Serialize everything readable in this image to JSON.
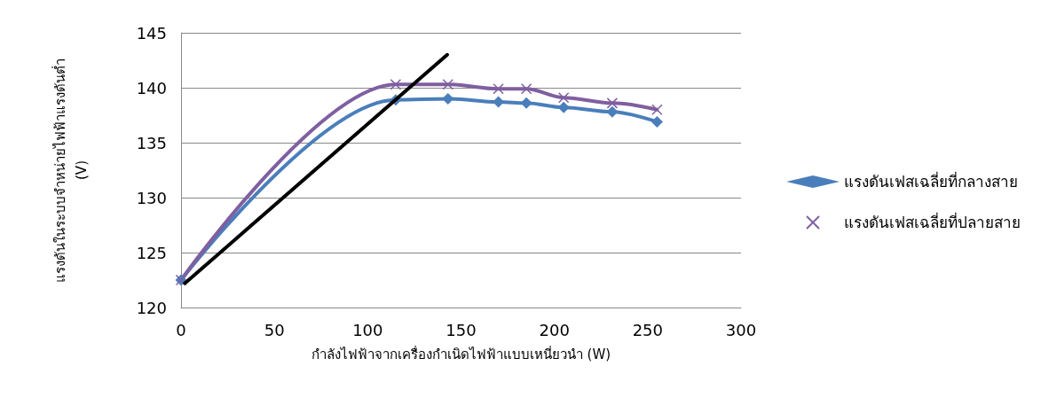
{
  "chart_data": {
    "type": "line",
    "xlabel": "กำลังไฟฟ้าจากเครื่องกำเนิดไฟฟ้าแบบเหนี่ยวนำ (W)",
    "ylabel": "แรงดันในระบบจำหน่ายไฟฟ้าแรงดันต่ำ\n(V)",
    "x": [
      0,
      115,
      143,
      170,
      185,
      205,
      231,
      255
    ],
    "series": [
      {
        "name": "แรงดันเฟสเฉลี่ยที่กลางสาย",
        "color": "#4a7ebb",
        "marker": "diamond",
        "values": [
          122.5,
          138.9,
          139.0,
          138.7,
          138.6,
          138.2,
          137.8,
          136.9
        ]
      },
      {
        "name": "แรงดันเฟสเฉลี่ยที่ปลายสาย",
        "color": "#7f5fa0",
        "marker": "cross",
        "values": [
          122.5,
          140.3,
          140.3,
          139.9,
          139.9,
          139.1,
          138.6,
          138.0
        ]
      },
      {
        "type": "line",
        "color": "#000000",
        "marker": "none",
        "x": [
          2,
          142.6
        ],
        "values": [
          122.2,
          143.0
        ]
      }
    ],
    "xlim": [
      0,
      300
    ],
    "xticks": [
      0,
      50,
      100,
      150,
      200,
      250,
      300
    ],
    "ylim": [
      120,
      145
    ],
    "yticks": [
      120,
      125,
      130,
      135,
      140,
      145
    ],
    "grid": "y",
    "legend": "right"
  }
}
